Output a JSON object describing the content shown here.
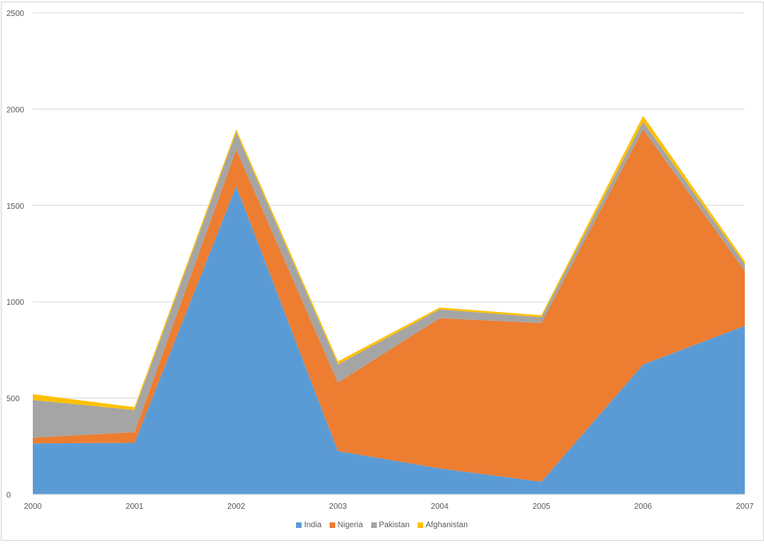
{
  "chart_data": {
    "type": "area",
    "stacked": true,
    "x": [
      "2000",
      "2001",
      "2002",
      "2003",
      "2004",
      "2005",
      "2006",
      "2007"
    ],
    "series": [
      {
        "name": "India",
        "color": "#5b9bd5",
        "values": [
          265,
          268,
          1600,
          225,
          135,
          65,
          675,
          875
        ]
      },
      {
        "name": "Nigeria",
        "color": "#ed7d31",
        "values": [
          30,
          55,
          190,
          355,
          780,
          825,
          1220,
          285
        ]
      },
      {
        "name": "Pakistan",
        "color": "#a5a5a5",
        "values": [
          195,
          115,
          90,
          95,
          45,
          30,
          40,
          35
        ]
      },
      {
        "name": "Afghanistan",
        "color": "#ffc000",
        "values": [
          30,
          15,
          15,
          15,
          10,
          10,
          30,
          15
        ]
      }
    ],
    "yticks": [
      0,
      500,
      1000,
      1500,
      2000,
      2500
    ],
    "ylim": [
      0,
      2500
    ],
    "grid": true,
    "legend_position": "bottom"
  }
}
